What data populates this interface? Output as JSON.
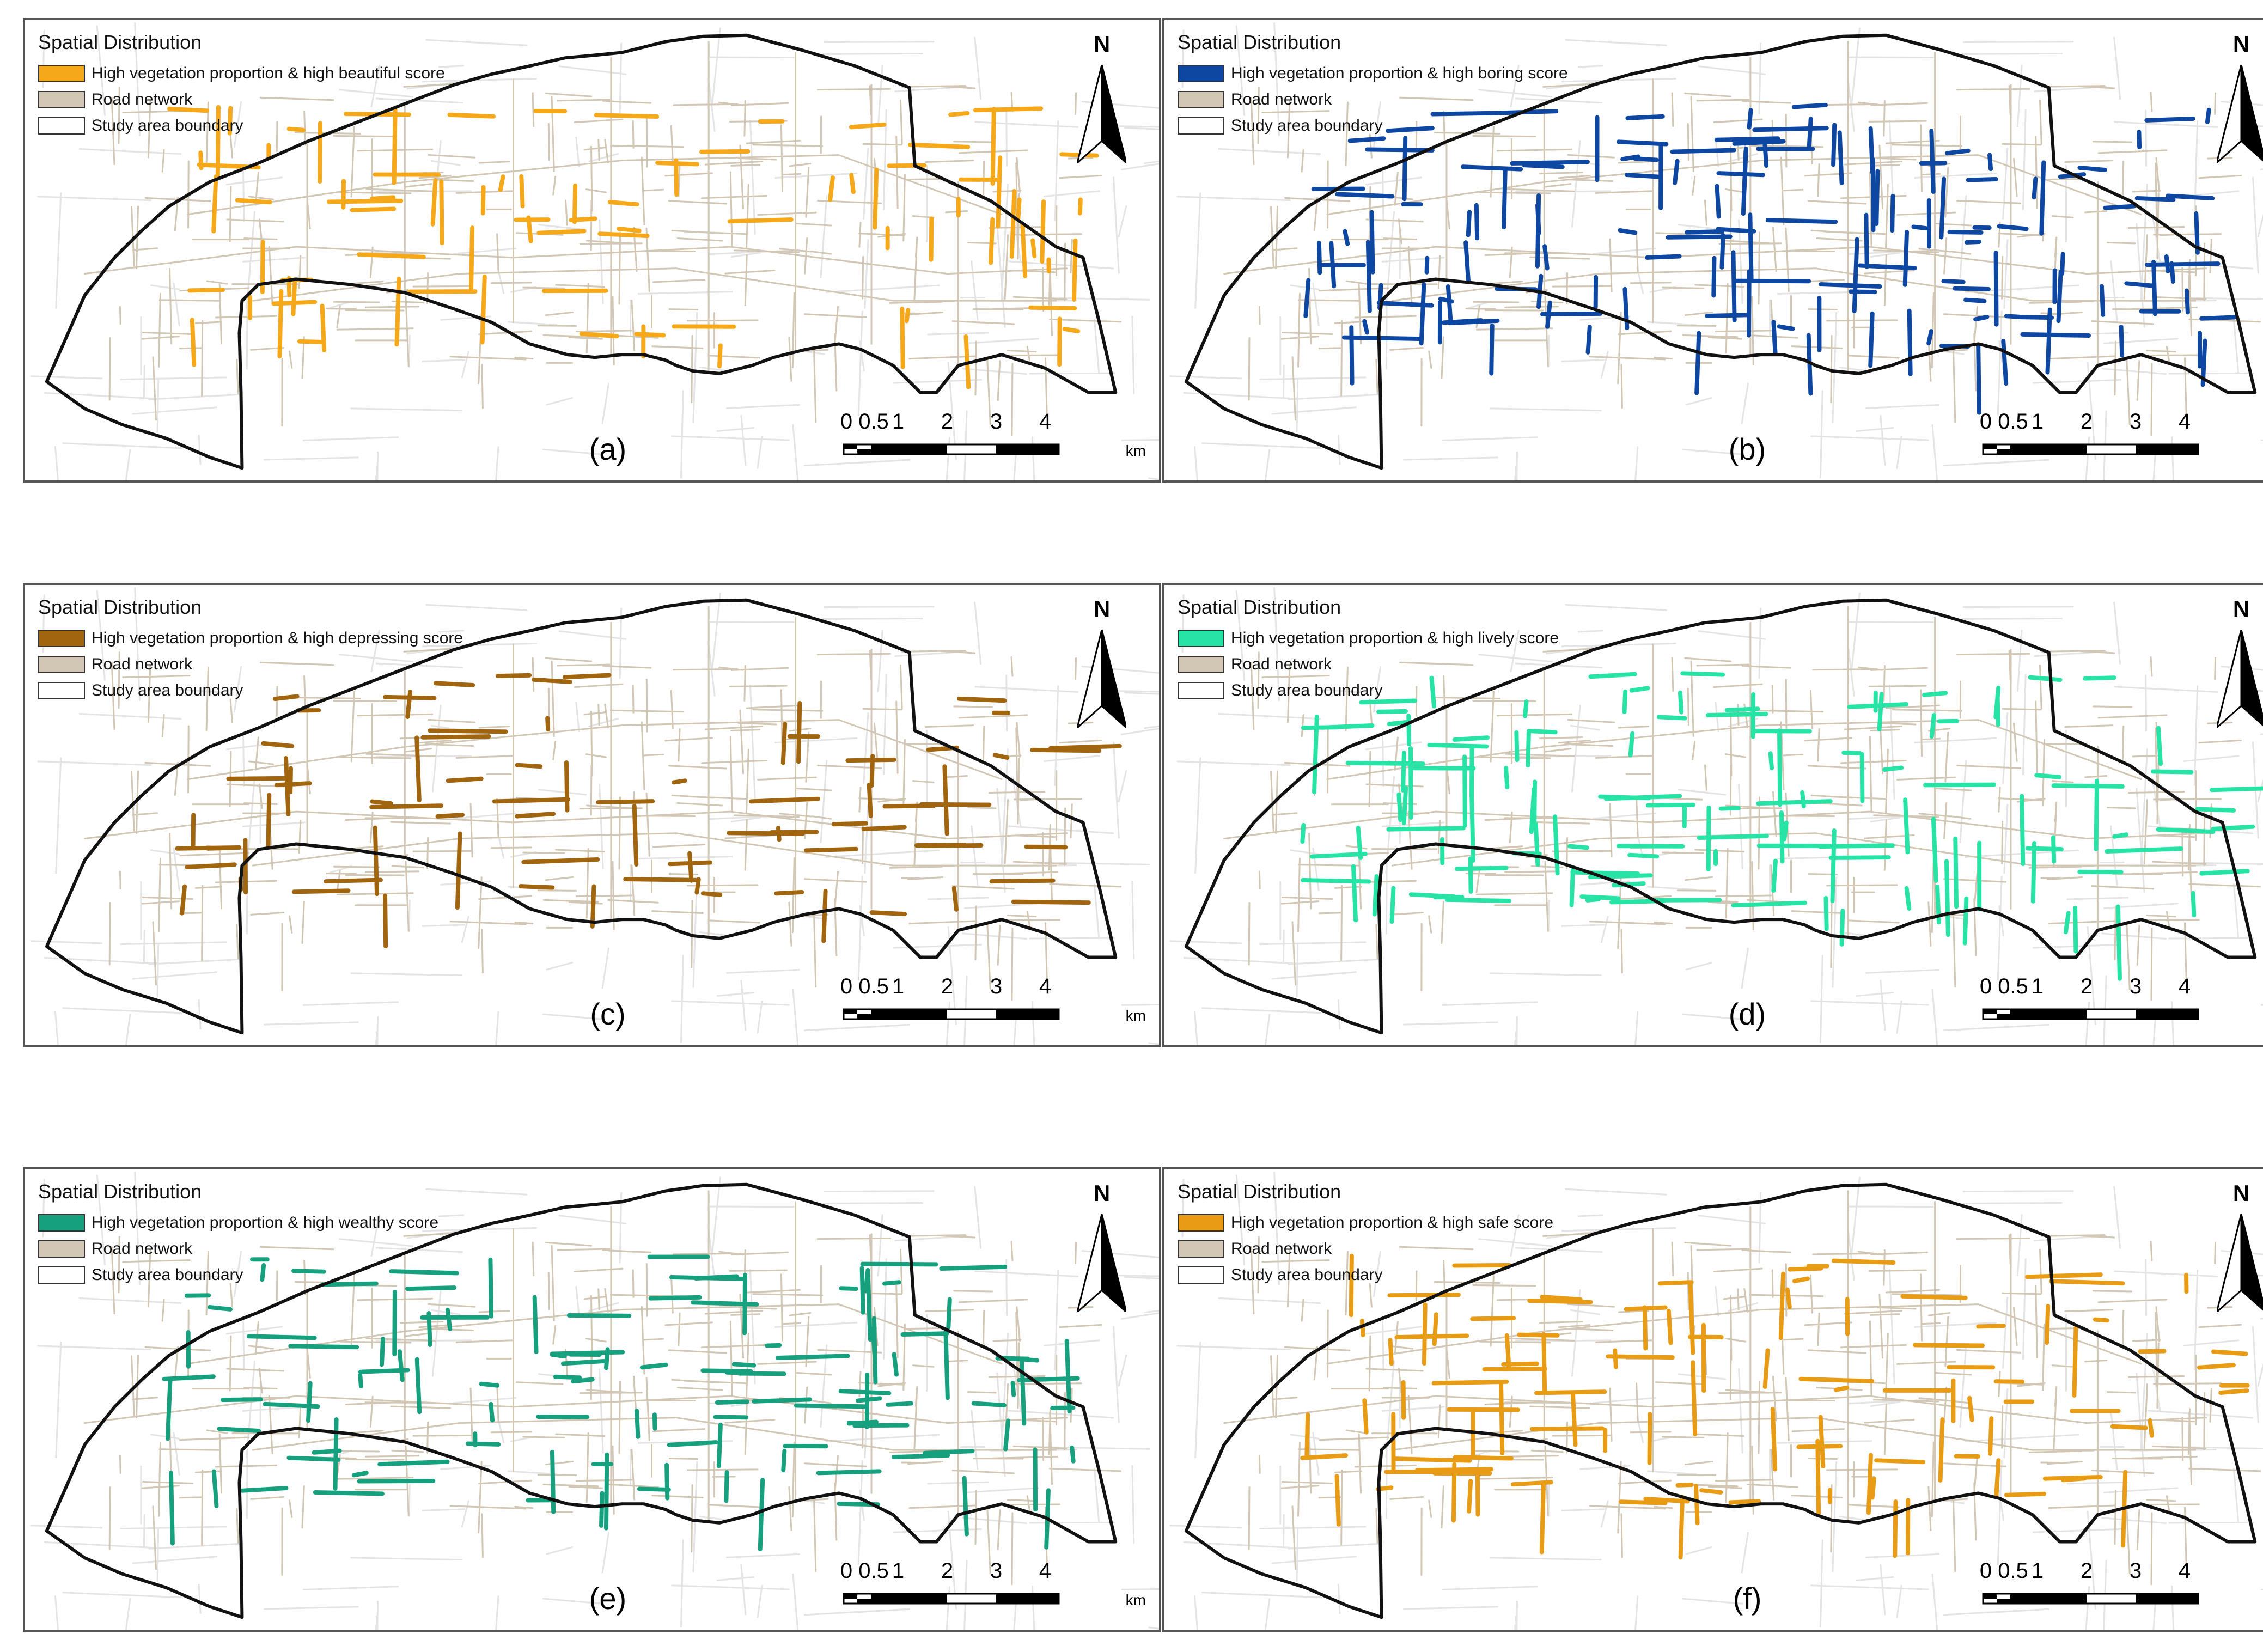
{
  "legend_title": "Spatial Distribution",
  "road_label": "Road network",
  "boundary_label": "Study area boundary",
  "north_label": "N",
  "scale": {
    "ticks": [
      "0",
      "0.5",
      "1",
      "2",
      "3",
      "4"
    ],
    "unit": "km"
  },
  "colors": {
    "road": "#d2c7b4",
    "background_road": "#e4e4e4",
    "boundary": "#111111"
  },
  "panels": [
    {
      "label": "(a)",
      "highlight_label": "High vegetation proportion & high beautiful score",
      "color": "#f5a91a"
    },
    {
      "label": "(b)",
      "highlight_label": "High vegetation proportion & high boring score",
      "color": "#0d47a1"
    },
    {
      "label": "(c)",
      "highlight_label": "High vegetation proportion & high depressing score",
      "color": "#a0650e"
    },
    {
      "label": "(d)",
      "highlight_label": "High vegetation proportion & high lively score",
      "color": "#27e3a6"
    },
    {
      "label": "(e)",
      "highlight_label": "High vegetation proportion & high wealthy score",
      "color": "#16a07e"
    },
    {
      "label": "(f)",
      "highlight_label": "High vegetation proportion & high safe score",
      "color": "#e89b14"
    }
  ]
}
